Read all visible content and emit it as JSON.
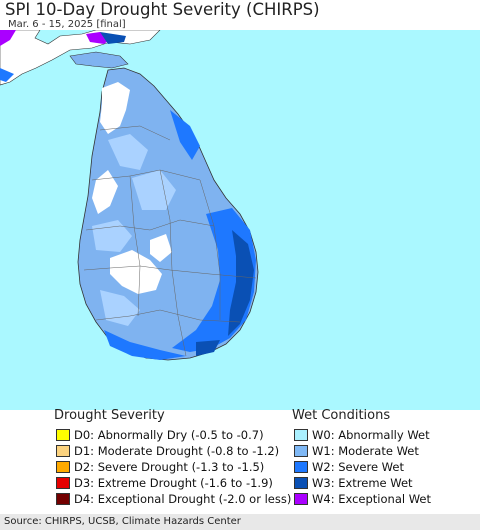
{
  "title": "SPI 10-Day Drought Severity (CHIRPS)",
  "subtitle": "Mar. 6 - 15, 2025 [final]",
  "legend": {
    "drought_heading": "Drought Severity",
    "wet_heading": "Wet Conditions",
    "drought_items": [
      {
        "label": "D0: Abnormally Dry (-0.5 to -0.7)",
        "color": "#ffff00"
      },
      {
        "label": "D1: Moderate Drought (-0.8 to -1.2)",
        "color": "#fcd37f"
      },
      {
        "label": "D2: Severe Drought (-1.3 to -1.5)",
        "color": "#ffaa00"
      },
      {
        "label": "D3: Extreme Drought (-1.6 to -1.9)",
        "color": "#e60000"
      },
      {
        "label": "D4: Exceptional Drought (-2.0 or less)",
        "color": "#730000"
      }
    ],
    "wet_items": [
      {
        "label": "W0: Abnormally Wet",
        "color": "#aaf0ff"
      },
      {
        "label": "W1: Moderate Wet",
        "color": "#7fb8f5"
      },
      {
        "label": "W2: Severe Wet",
        "color": "#1e78ff"
      },
      {
        "label": "W3: Extreme Wet",
        "color": "#0a50b4"
      },
      {
        "label": "W4: Exceptional Wet",
        "color": "#aa00ff"
      }
    ]
  },
  "map_colors": {
    "sea": "#aaf8ff",
    "mainland_india": "#ffffff",
    "no_anomaly": "#ffffff",
    "w0": "#aad2ff",
    "w1": "#7fb3f0",
    "w2": "#1e78ff",
    "w3": "#0a50b4",
    "w4": "#aa00ff"
  },
  "source": "Source: CHIRPS, UCSB, Climate Hazards Center"
}
